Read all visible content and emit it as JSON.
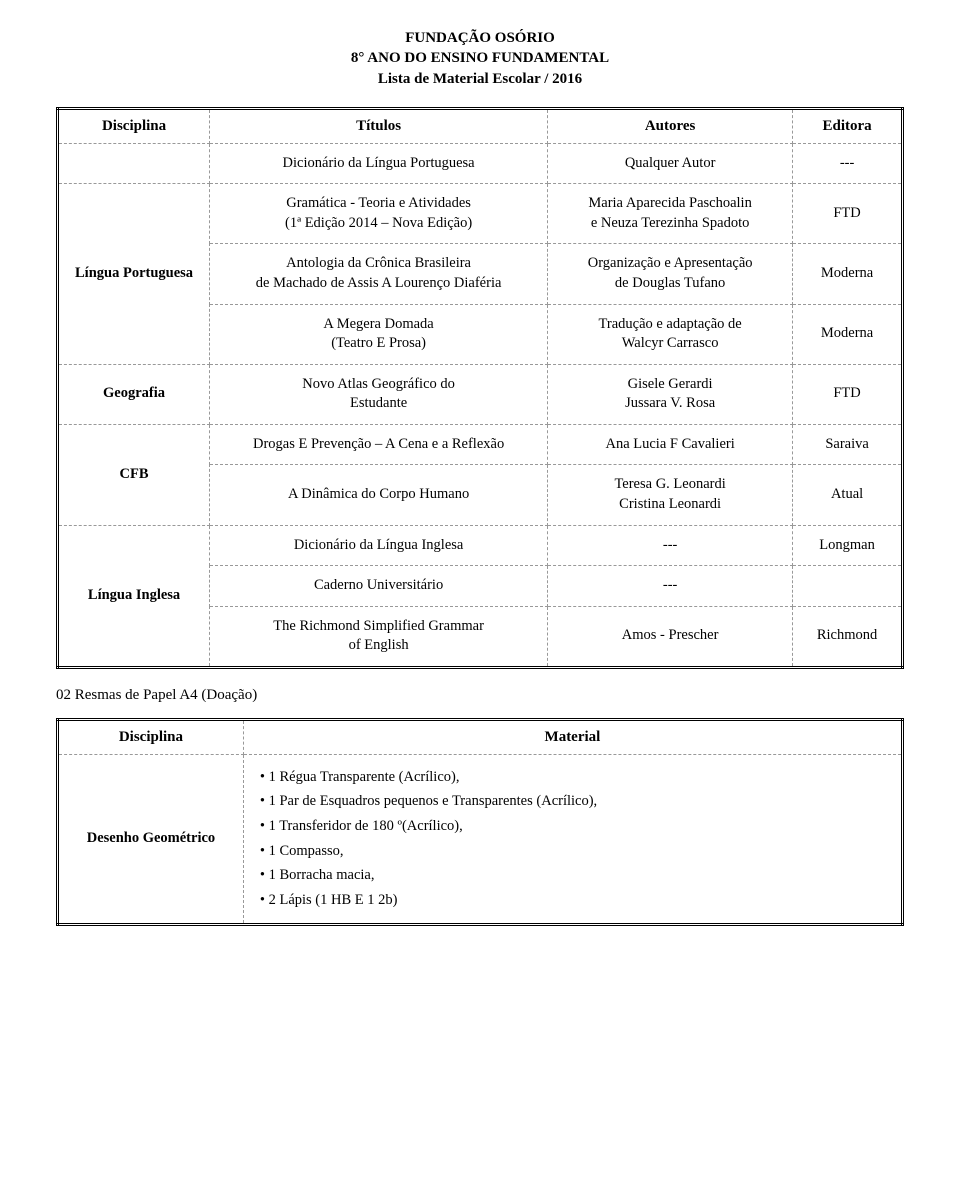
{
  "header": {
    "line1": "FUNDAÇÃO OSÓRIO",
    "line2": "8° ANO DO ENSINO FUNDAMENTAL",
    "line3": "Lista de Material Escolar / 2016"
  },
  "tableMain": {
    "columns": [
      "Disciplina",
      "Títulos",
      "Autores",
      "Editora"
    ],
    "rows": [
      {
        "disciplina": "",
        "titulo": "Dicionário da Língua Portuguesa",
        "autor": "Qualquer Autor",
        "editora": "---"
      },
      {
        "disciplina": "Língua Portuguesa",
        "disciplina_rowspan": 3,
        "titulo": "Gramática - Teoria e Atividades\n(1ª Edição 2014 – Nova Edição)",
        "autor": "Maria Aparecida Paschoalin\ne Neuza Terezinha Spadoto",
        "editora": "FTD"
      },
      {
        "titulo": "Antologia da Crônica Brasileira\nde Machado de Assis A Lourenço Diaféria",
        "autor": "Organização e Apresentação\nde Douglas Tufano",
        "editora": "Moderna"
      },
      {
        "titulo": "A Megera Domada\n(Teatro E Prosa)",
        "autor": "Tradução e adaptação de\nWalcyr Carrasco",
        "editora": "Moderna"
      },
      {
        "disciplina": "Geografia",
        "titulo": "Novo Atlas Geográfico do\nEstudante",
        "autor": "Gisele Gerardi\nJussara V. Rosa",
        "editora": "FTD"
      },
      {
        "disciplina": "CFB",
        "disciplina_rowspan": 2,
        "titulo": "Drogas E Prevenção – A Cena e a Reflexão",
        "autor": "Ana Lucia F Cavalieri",
        "editora": "Saraiva"
      },
      {
        "titulo": "A Dinâmica do Corpo Humano",
        "autor": "Teresa G. Leonardi\nCristina Leonardi",
        "editora": "Atual"
      },
      {
        "disciplina": "Língua Inglesa",
        "disciplina_rowspan": 3,
        "titulo": "Dicionário da Língua Inglesa",
        "autor": "---",
        "editora": "Longman"
      },
      {
        "titulo": "Caderno Universitário",
        "autor": "---",
        "editora": ""
      },
      {
        "titulo": "The Richmond Simplified Grammar\nof English",
        "autor": "Amos - Prescher",
        "editora": "Richmond"
      }
    ]
  },
  "note": "02 Resmas de Papel A4 (Doação)",
  "tableMaterial": {
    "columns": [
      "Disciplina",
      "Material"
    ],
    "rowhead": "Desenho Geométrico",
    "items": [
      "1 Régua Transparente (Acrílico),",
      "1 Par de Esquadros pequenos e Transparentes (Acrílico),",
      "1 Transferidor de 180 º(Acrílico),",
      "1 Compasso,",
      "1 Borracha macia,",
      "2 Lápis (1 HB E 1 2b)"
    ]
  },
  "style": {
    "font_family": "Times New Roman",
    "background_color": "#ffffff",
    "text_color": "#000000",
    "table_outer_border": "double",
    "table_inner_border": "dashed",
    "inner_border_color": "#999999"
  }
}
